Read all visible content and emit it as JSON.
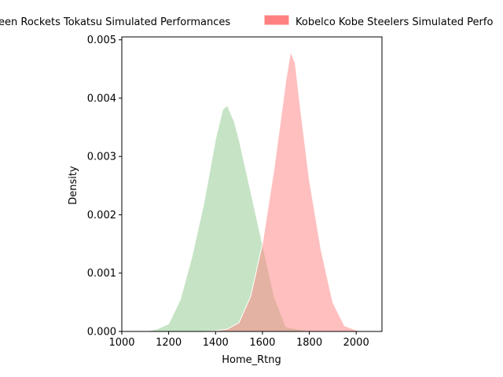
{
  "chart_data": {
    "type": "area",
    "xlabel": "Home_Rtng",
    "ylabel": "Density",
    "xlim": [
      1000,
      2110
    ],
    "ylim": [
      0,
      0.00505
    ],
    "x_ticks": [
      "1000",
      "1200",
      "1400",
      "1600",
      "1800",
      "2000"
    ],
    "y_ticks": [
      "0.000",
      "0.001",
      "0.002",
      "0.003",
      "0.004",
      "0.005"
    ],
    "legend_position": "top (clipped at both edges)",
    "grid": false,
    "series": [
      {
        "name": "Green Rockets Tokatsu Simulated Performances",
        "legend_text": "een Rockets Tokatsu Simulated Performances",
        "color": "#8ec98c",
        "x": [
          1100,
          1150,
          1200,
          1250,
          1300,
          1350,
          1400,
          1430,
          1450,
          1480,
          1500,
          1550,
          1600,
          1650,
          1700,
          1800
        ],
        "y": [
          0.0,
          4e-05,
          0.00013,
          0.00055,
          0.0013,
          0.0022,
          0.0033,
          0.0038,
          0.00388,
          0.0036,
          0.0033,
          0.0024,
          0.0015,
          0.0006,
          8e-05,
          0.0
        ]
      },
      {
        "name": "Kobelco Kobe Steelers Simulated Performances",
        "legend_text": "Kobelco Kobe Steelers Simulated Perfo",
        "color": "#ff8080",
        "x": [
          1350,
          1400,
          1450,
          1500,
          1550,
          1600,
          1650,
          1680,
          1700,
          1720,
          1740,
          1760,
          1800,
          1850,
          1900,
          1950,
          2000,
          2030
        ],
        "y": [
          0.0,
          1e-05,
          4e-05,
          0.00015,
          0.0006,
          0.0015,
          0.0028,
          0.0037,
          0.0043,
          0.0048,
          0.0046,
          0.0039,
          0.0026,
          0.0014,
          0.0005,
          0.0001,
          2e-05,
          0.0
        ]
      }
    ]
  }
}
